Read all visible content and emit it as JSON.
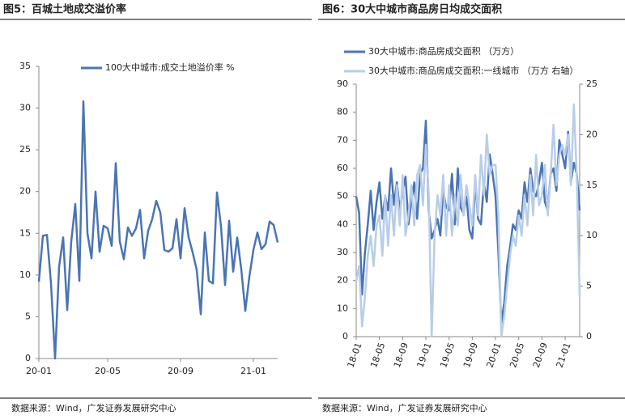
{
  "chart_data": [
    {
      "type": "line",
      "title": "图5：百城土地成交溢价率",
      "source": "数据来源：Wind，广发证券发展研究中心",
      "categories": [
        "20-01",
        null,
        null,
        null,
        null,
        null,
        null,
        null,
        null,
        null,
        null,
        null,
        null,
        null,
        null,
        null,
        null,
        "20-05",
        null,
        null,
        null,
        null,
        null,
        null,
        null,
        null,
        null,
        null,
        null,
        null,
        null,
        null,
        null,
        null,
        null,
        "20-09",
        null,
        null,
        null,
        null,
        null,
        null,
        null,
        null,
        null,
        null,
        null,
        null,
        null,
        null,
        null,
        null,
        null,
        "21-01",
        null,
        null,
        null,
        null,
        null,
        null
      ],
      "series": [
        {
          "name": "100大中城市:成交土地溢价率 %",
          "color": "#4a74b4",
          "values": [
            9.2,
            14.7,
            14.8,
            9,
            0,
            11,
            14.5,
            5.8,
            14,
            18.5,
            9.3,
            30.8,
            15,
            12,
            20,
            12.8,
            15.9,
            15.6,
            13.5,
            23.4,
            14,
            11.9,
            15.7,
            14.7,
            15.6,
            17.8,
            12,
            15.3,
            16.7,
            18.9,
            17.5,
            13,
            12.8,
            13.2,
            16.7,
            12,
            18,
            14.5,
            12.7,
            10.6,
            5.3,
            15.1,
            9.3,
            9,
            19.9,
            15.8,
            8.8,
            16.5,
            10.4,
            14.5,
            10.7,
            5.7,
            9.8,
            13,
            15.1,
            13.1,
            13.7,
            16.4,
            16,
            13.9
          ]
        }
      ],
      "ylim": [
        0,
        35
      ],
      "yticks": [
        0,
        5,
        10,
        15,
        20,
        25,
        30,
        35
      ],
      "legend": "top"
    },
    {
      "type": "line",
      "title": "图6：30大中城市商品房日均成交面积",
      "source": "数据来源：Wind，广发证券发展研究中心",
      "categories": [
        "18-01",
        null,
        null,
        null,
        null,
        null,
        null,
        null,
        "18-05",
        null,
        null,
        null,
        null,
        null,
        null,
        null,
        "18-09",
        null,
        null,
        null,
        null,
        null,
        null,
        null,
        "19-01",
        null,
        null,
        null,
        null,
        null,
        null,
        null,
        "19-05",
        null,
        null,
        null,
        null,
        null,
        null,
        null,
        "19-09",
        null,
        null,
        null,
        null,
        null,
        null,
        null,
        "20-01",
        null,
        null,
        null,
        null,
        null,
        null,
        null,
        "20-05",
        null,
        null,
        null,
        null,
        null,
        null,
        null,
        "20-09",
        null,
        null,
        null,
        null,
        null,
        null,
        null,
        "21-01",
        null,
        null,
        null,
        null,
        null
      ],
      "series": [
        {
          "name": "30大中城市:商品房成交面积 （万方）",
          "color": "#4a74b4",
          "values": [
            50,
            44,
            15,
            30,
            40,
            52,
            38,
            48,
            55,
            42,
            50,
            45,
            60,
            47,
            55,
            45,
            52,
            57,
            40,
            48,
            55,
            42,
            58,
            60,
            77,
            45,
            35,
            38,
            42,
            36,
            52,
            46,
            45,
            58,
            40,
            60,
            46,
            44,
            50,
            38,
            35,
            55,
            42,
            40,
            55,
            48,
            65,
            58,
            50,
            30,
            5,
            12,
            25,
            32,
            40,
            38,
            45,
            42,
            55,
            48,
            60,
            52,
            50,
            55,
            62,
            48,
            45,
            58,
            60,
            52,
            70,
            65,
            60,
            73,
            55,
            62,
            58,
            45
          ]
        },
        {
          "name": "30大中城市:商品房成交面积:一线城市 （万方 右轴）",
          "color": "#b8cde8",
          "axis": "y2",
          "values": [
            5.5,
            7,
            1,
            4,
            8,
            10,
            7,
            11,
            12,
            8,
            14,
            9,
            14,
            10,
            15,
            11,
            16,
            10,
            12,
            15,
            11,
            16,
            17,
            13,
            19,
            14,
            0,
            10,
            14,
            12,
            16,
            10,
            15,
            10,
            14,
            11,
            16,
            12,
            15,
            13,
            11,
            16,
            12,
            18,
            14,
            20,
            16,
            17,
            17,
            12,
            0,
            2,
            5,
            8,
            10,
            9,
            12,
            10,
            14,
            11,
            16,
            12,
            18,
            13,
            14,
            17,
            12,
            16,
            21,
            15,
            18,
            19,
            18,
            20,
            15,
            23,
            16,
            4
          ]
        }
      ],
      "ylim": [
        0,
        90
      ],
      "yticks": [
        0,
        10,
        20,
        30,
        40,
        50,
        60,
        70,
        80,
        90
      ],
      "y2lim": [
        0,
        25
      ],
      "y2ticks": [
        0,
        5,
        10,
        15,
        20,
        25
      ],
      "legend": "top"
    }
  ]
}
